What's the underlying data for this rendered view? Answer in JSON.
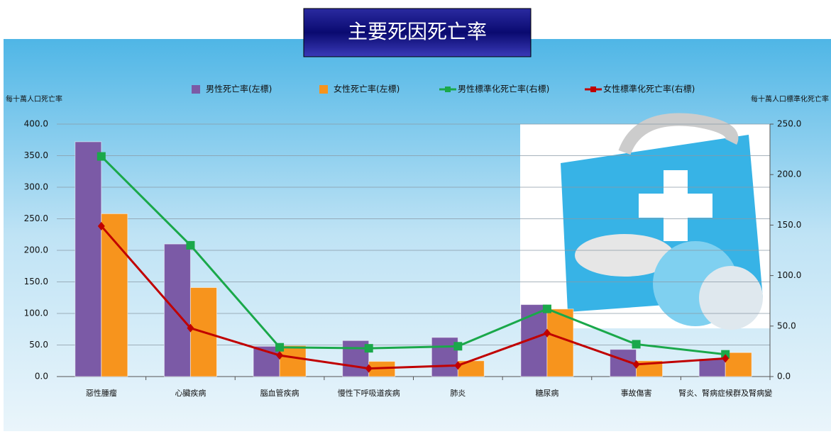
{
  "chart_data": {
    "type": "bar-line",
    "title": "主要死因死亡率",
    "y_label": "每十萬人口死亡率",
    "y2_label": "每十萬人口標準化死亡率",
    "categories": [
      "惡性腫瘤",
      "心臟疾病",
      "腦血管疾病",
      "慢性下呼吸道疾病",
      "肺炎",
      "糖尿病",
      "事故傷害",
      "腎炎、腎病症候群及腎病變"
    ],
    "series": [
      {
        "name": "男性死亡率(左標)",
        "type": "bar",
        "color": "#7b5aa6",
        "values": [
          372,
          210,
          48,
          57,
          62,
          114,
          43,
          28
        ]
      },
      {
        "name": "女性死亡率(左標)",
        "type": "bar",
        "color": "#f7941d",
        "values": [
          258,
          141,
          49,
          24,
          25,
          107,
          25,
          38
        ]
      },
      {
        "name": "男性標準化死亡率(右標)",
        "type": "line",
        "axis": "y2",
        "color": "#1aa84a",
        "values": [
          218,
          130,
          29,
          28,
          30,
          67,
          32,
          22
        ]
      },
      {
        "name": "女性標準化死亡率(右標)",
        "type": "line",
        "axis": "y2",
        "color": "#c00000",
        "values": [
          149,
          48,
          21,
          8,
          11,
          43,
          12,
          18
        ]
      }
    ],
    "ylim": [
      0,
      400
    ],
    "yticks": [
      {
        "value": 0,
        "label": "0.0"
      },
      {
        "value": 50,
        "label": "50.0"
      },
      {
        "value": 100,
        "label": "100.0"
      },
      {
        "value": 150,
        "label": "150.0"
      },
      {
        "value": 200,
        "label": "200.0"
      },
      {
        "value": 250,
        "label": "250.0"
      },
      {
        "value": 300,
        "label": "300.0"
      },
      {
        "value": 350,
        "label": "350.0"
      },
      {
        "value": 400,
        "label": "400.0"
      }
    ],
    "y2lim": [
      0,
      250
    ],
    "y2ticks": [
      {
        "value": 0,
        "label": "0.0"
      },
      {
        "value": 50,
        "label": "50.0"
      },
      {
        "value": 100,
        "label": "100.0"
      },
      {
        "value": 150,
        "label": "150.0"
      },
      {
        "value": 200,
        "label": "200.0"
      },
      {
        "value": 250,
        "label": "250.0"
      }
    ],
    "grid": true
  }
}
